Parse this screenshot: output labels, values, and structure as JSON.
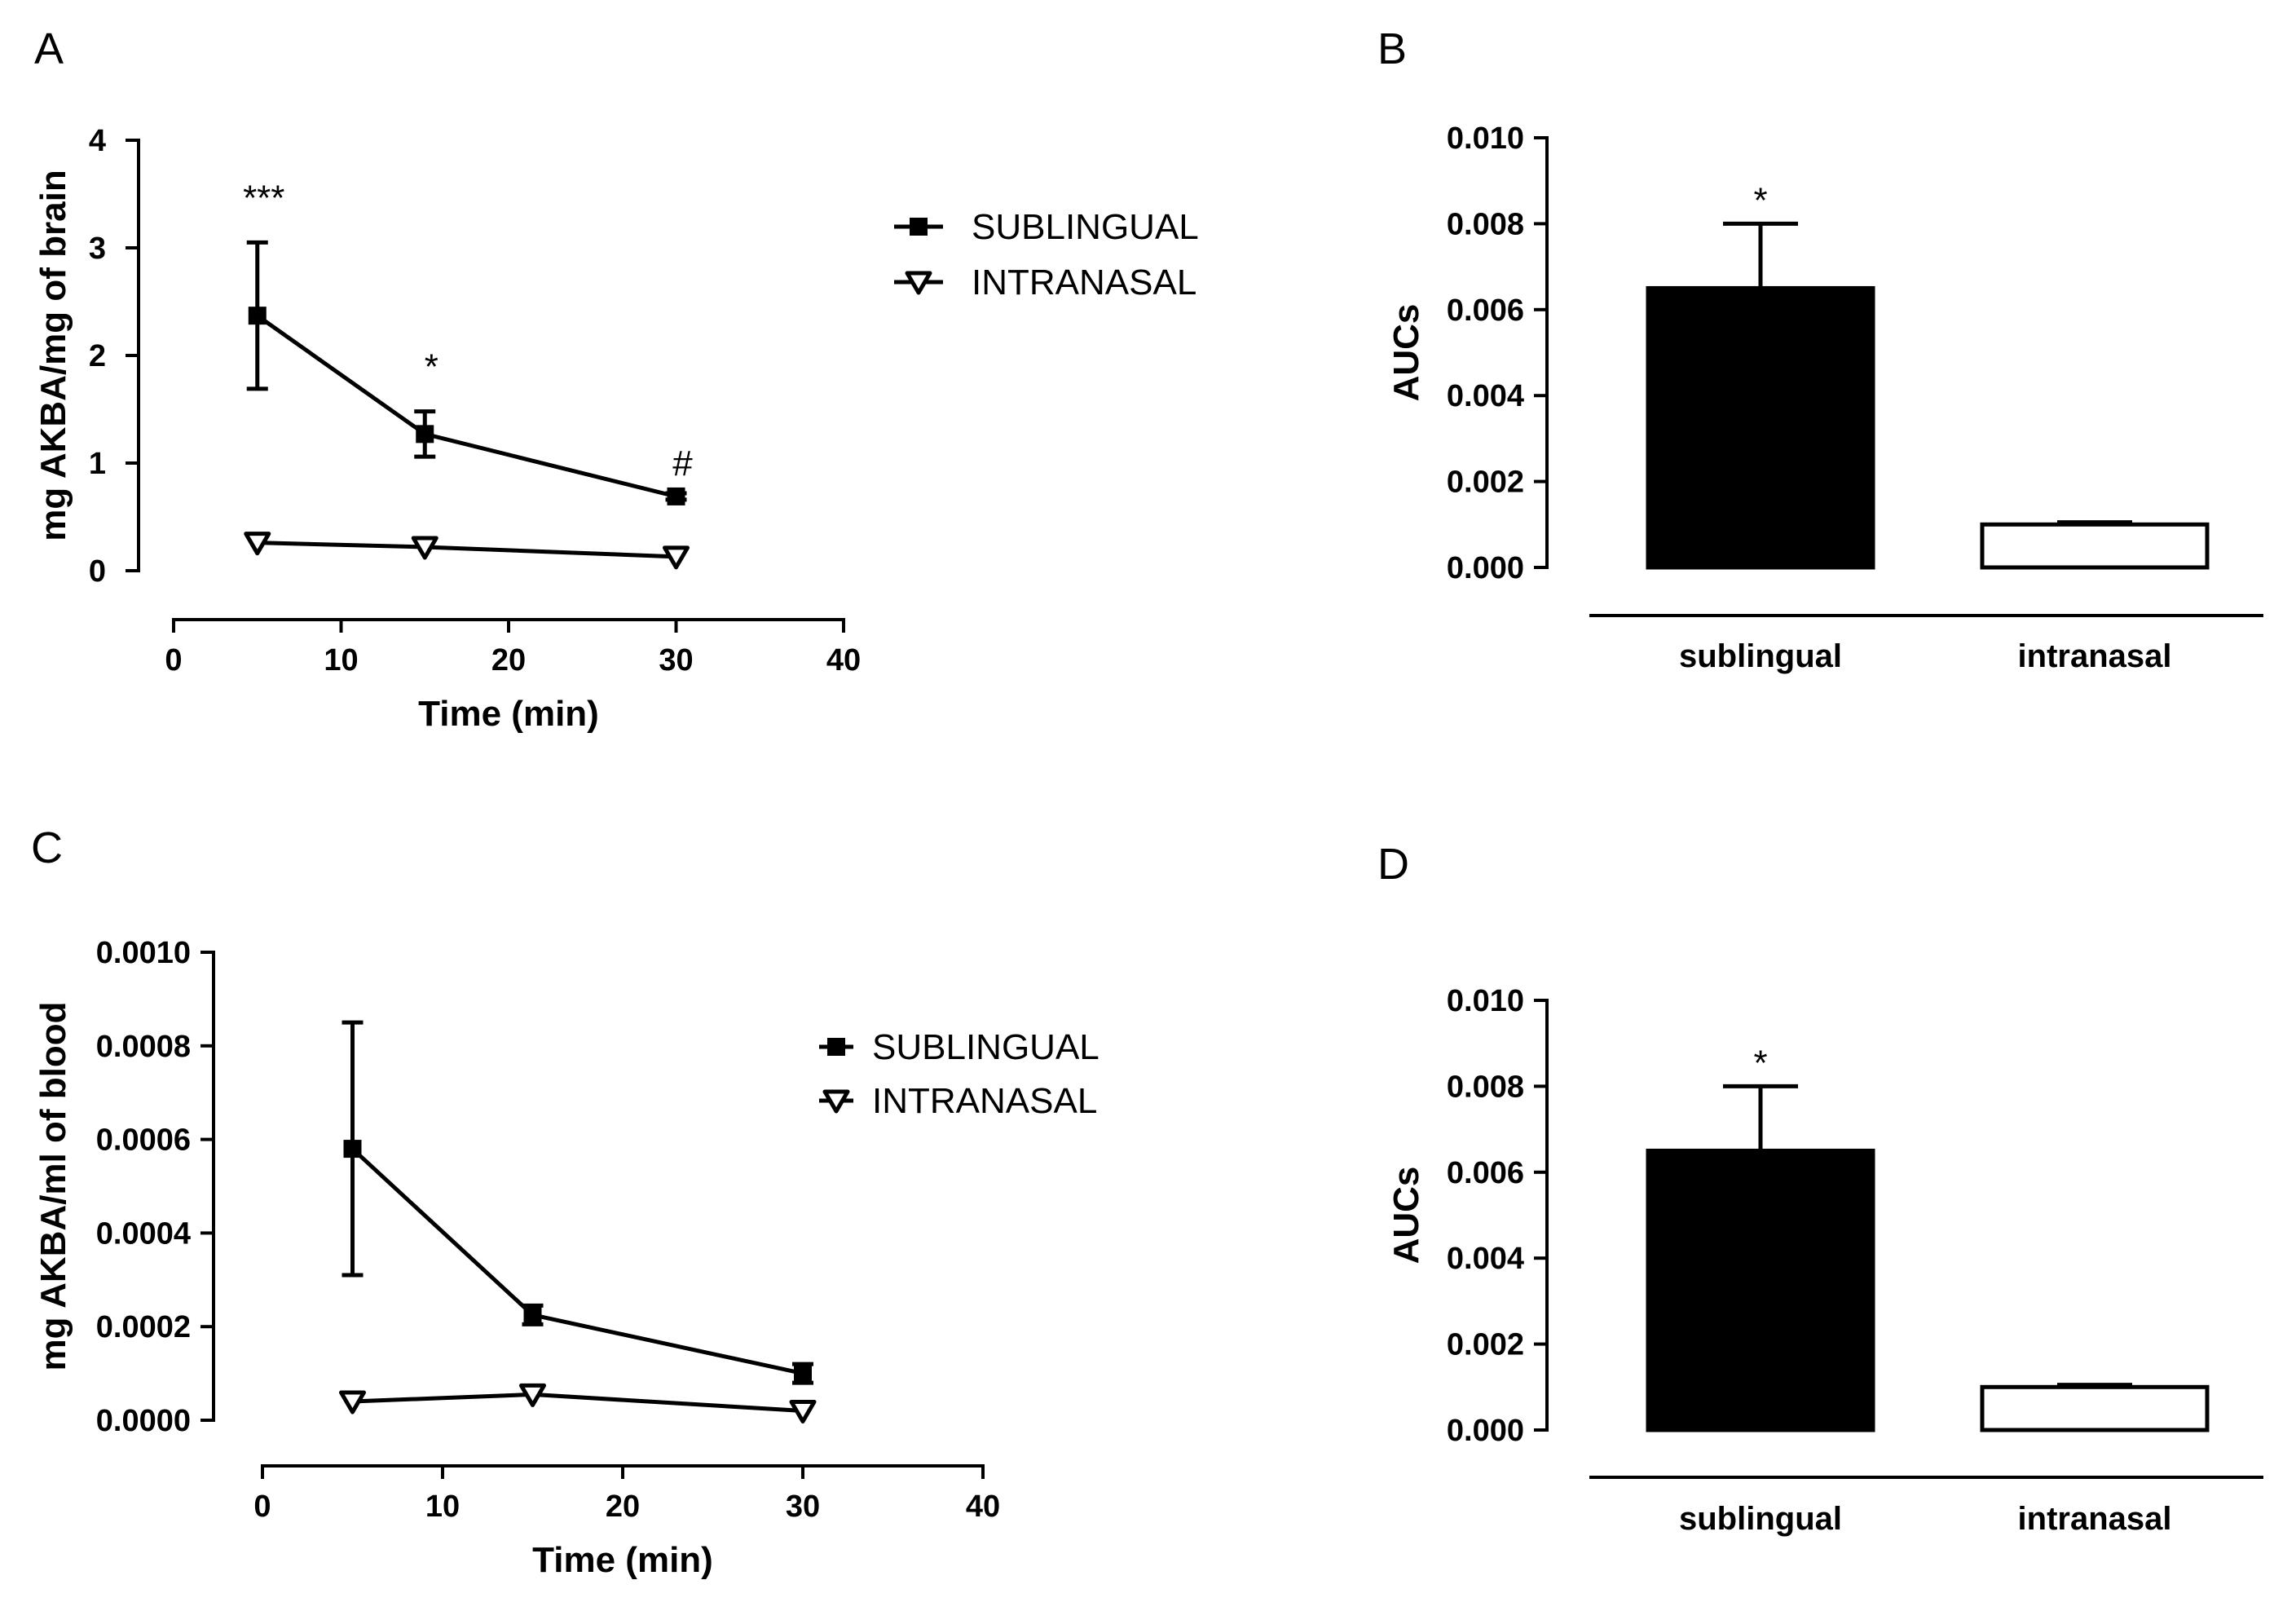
{
  "chart_data": [
    {
      "panel": "A",
      "type": "line",
      "xlabel": "Time (min)",
      "ylabel": "mg AKBA/mg of brain",
      "xlim": [
        0,
        40
      ],
      "ylim": [
        0,
        4
      ],
      "xticks": [
        "0",
        "10",
        "20",
        "30",
        "40"
      ],
      "yticks": [
        "0",
        "1",
        "2",
        "3",
        "4"
      ],
      "x": [
        5,
        15,
        30
      ],
      "series": [
        {
          "name": "SUBLINGUAL",
          "marker": "square",
          "values": [
            2.37,
            1.27,
            0.69
          ],
          "err": [
            0.68,
            0.21,
            0.03
          ]
        },
        {
          "name": "INTRANASAL",
          "marker": "triangle-down",
          "values": [
            0.26,
            0.22,
            0.13
          ],
          "err": [
            0.02,
            0.02,
            0.02
          ]
        }
      ],
      "annotations": [
        {
          "x": 5,
          "text": "***"
        },
        {
          "x": 15,
          "text": "*"
        },
        {
          "x": 30,
          "text": "#"
        }
      ],
      "legend": "top-right"
    },
    {
      "panel": "B",
      "type": "bar",
      "ylabel": "AUCs",
      "categories": [
        "sublingual",
        "intranasal"
      ],
      "values": [
        0.0065,
        0.001
      ],
      "err": [
        0.0015,
        5e-05
      ],
      "fills": [
        "#000000",
        "#ffffff"
      ],
      "ylim": [
        0,
        0.01
      ],
      "yticks": [
        "0.000",
        "0.002",
        "0.004",
        "0.006",
        "0.008",
        "0.010"
      ],
      "annotations": [
        {
          "category": "sublingual",
          "text": "*"
        }
      ]
    },
    {
      "panel": "C",
      "type": "line",
      "xlabel": "Time (min)",
      "ylabel": "mg AKBA/ml of blood",
      "xlim": [
        0,
        40
      ],
      "ylim": [
        0,
        0.001
      ],
      "xticks": [
        "0",
        "10",
        "20",
        "30",
        "40"
      ],
      "yticks": [
        "0.0000",
        "0.0002",
        "0.0004",
        "0.0006",
        "0.0008",
        "0.0010"
      ],
      "x": [
        5,
        15,
        30
      ],
      "series": [
        {
          "name": "SUBLINGUAL",
          "marker": "square",
          "values": [
            0.00058,
            0.000225,
            0.0001
          ],
          "err": [
            0.00027,
            2e-05,
            2e-05
          ]
        },
        {
          "name": "INTRANASAL",
          "marker": "triangle-down",
          "values": [
            4e-05,
            5.5e-05,
            2e-05
          ],
          "err": [
            5e-06,
            5e-06,
            5e-06
          ]
        }
      ],
      "annotations": [],
      "legend": "right"
    },
    {
      "panel": "D",
      "type": "bar",
      "ylabel": "AUCs",
      "categories": [
        "sublingual",
        "intranasal"
      ],
      "values": [
        0.0065,
        0.001
      ],
      "err": [
        0.0015,
        5e-05
      ],
      "fills": [
        "#000000",
        "#ffffff"
      ],
      "ylim": [
        0,
        0.01
      ],
      "yticks": [
        "0.000",
        "0.002",
        "0.004",
        "0.006",
        "0.008",
        "0.010"
      ],
      "annotations": [
        {
          "category": "sublingual",
          "text": "*"
        }
      ]
    }
  ]
}
